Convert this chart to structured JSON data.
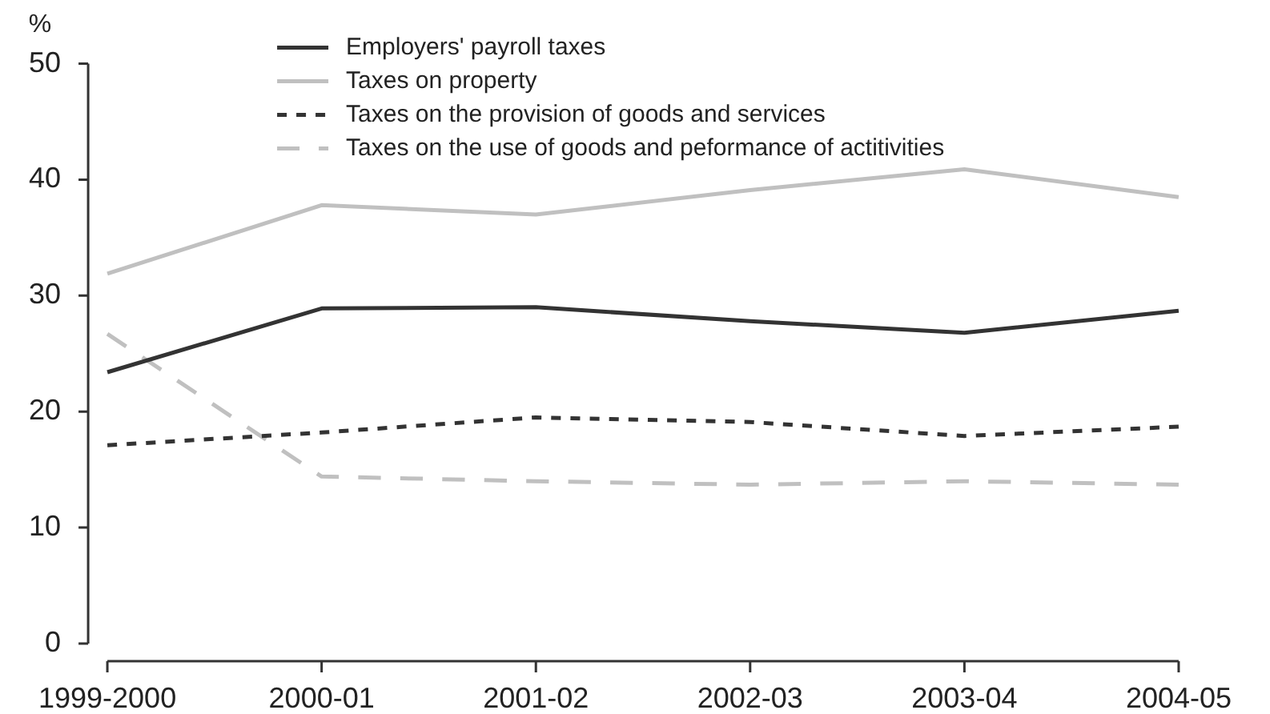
{
  "chart_data": {
    "type": "line",
    "ylabel": "%",
    "categories": [
      "1999-2000",
      "2000-01",
      "2001-02",
      "2002-03",
      "2003-04",
      "2004-05"
    ],
    "ylim": [
      0,
      50
    ],
    "yticks": [
      0,
      10,
      20,
      30,
      40,
      50
    ],
    "legend": "top",
    "marker": "none",
    "series": [
      {
        "name": "Employers' payroll taxes",
        "color": "#333333",
        "line_style": "solid",
        "values": [
          23.4,
          28.9,
          29.0,
          27.8,
          26.8,
          28.7
        ]
      },
      {
        "name": "Taxes on property",
        "color": "#c0c0c0",
        "line_style": "solid",
        "values": [
          31.9,
          37.8,
          37.0,
          39.1,
          40.9,
          38.5
        ]
      },
      {
        "name": "Taxes on the provision of goods and services",
        "color": "#333333",
        "line_style": "dotted",
        "values": [
          17.1,
          18.2,
          19.5,
          19.1,
          17.9,
          18.7
        ]
      },
      {
        "name": "Taxes on the use of goods and peformance of actitivities",
        "color": "#c0c0c0",
        "line_style": "dashed",
        "values": [
          26.7,
          14.4,
          14.0,
          13.7,
          14.0,
          13.7
        ]
      }
    ]
  }
}
